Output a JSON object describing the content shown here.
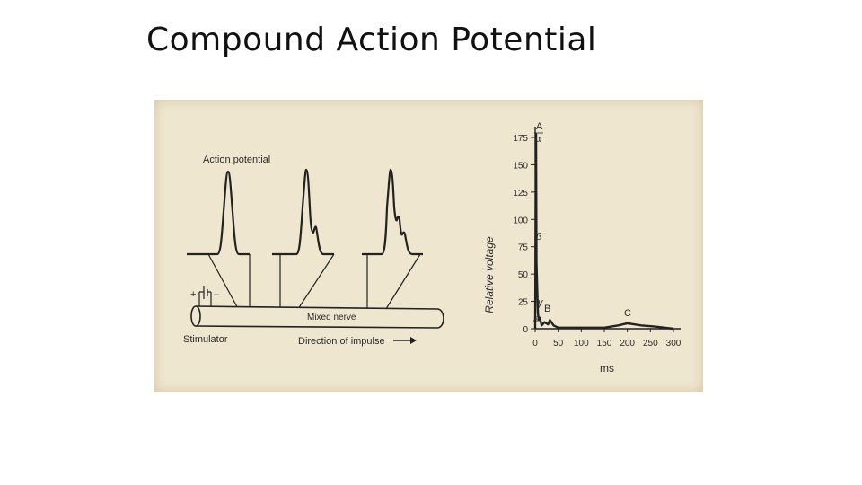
{
  "slide": {
    "title": "Compound Action Potential"
  },
  "diagram": {
    "action_potential_label": "Action potential",
    "mixed_nerve_label": "Mixed nerve",
    "stimulator_label": "Stimulator",
    "direction_label": "Direction of impulse",
    "plus_sign": "+",
    "minus_sign": "–"
  },
  "chart_data": {
    "type": "line",
    "ylabel": "Relative voltage",
    "xlabel": "ms",
    "x_ticks": [
      "0",
      "50",
      "100",
      "150",
      "200",
      "250",
      "300"
    ],
    "y_ticks": [
      "0",
      "25",
      "50",
      "75",
      "100",
      "125",
      "150",
      "175"
    ],
    "xlim": [
      0,
      300
    ],
    "ylim": [
      0,
      175
    ],
    "peak_labels": {
      "A": "A",
      "alpha": "α",
      "beta": "β",
      "gamma": "γ",
      "delta": "δ",
      "B": "B",
      "C": "C"
    },
    "series": [
      {
        "x": [
          0,
          2,
          3,
          6,
          8,
          10,
          14,
          20,
          28,
          32,
          40,
          50,
          100,
          150,
          180,
          200,
          230,
          260,
          300
        ],
        "y": [
          0,
          178,
          60,
          14,
          8,
          10,
          3,
          6,
          4,
          8,
          3,
          1,
          1,
          1,
          3,
          5,
          3,
          2,
          0
        ]
      }
    ]
  }
}
